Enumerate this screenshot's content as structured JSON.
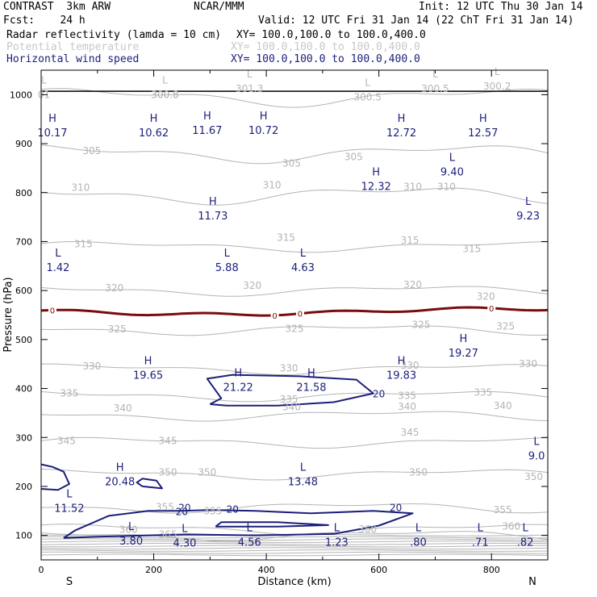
{
  "header": {
    "left1": "CONTRAST  3km ARW",
    "center1": "NCAR/MMM",
    "right1": "Init: 12 UTC Thu 30 Jan 14",
    "left2": "Fcst:    24 h",
    "right2": "Valid: 12 UTC Fri 31 Jan 14 (22 ChT Fri 31 Jan 14)",
    "field1_name": "Radar reflectivity (lamda = 10 cm)",
    "field1_xy": "XY= 100.0,100.0 to 100.0,400.0",
    "field2_name": "Potential temperature",
    "field2_xy": "XY= 100.0,100.0 to 100.0,400.0",
    "field3_name": "Horizontal wind speed",
    "field3_xy": "XY= 100.0,100.0 to 100.0,400.0"
  },
  "colors": {
    "theta": "#b4b4b4",
    "wind": "#1b1f7a",
    "zero": "#7a0c0c",
    "axis": "#000000"
  },
  "chart_data": {
    "type": "cross-section contour",
    "xlabel": "Distance (km)",
    "ylabel": "Pressure (hPa)",
    "xlim": [
      0,
      900
    ],
    "ylim": [
      1050,
      50
    ],
    "x_ticks": [
      "0",
      "200",
      "400",
      "600",
      "800"
    ],
    "y_ticks": [
      "100",
      "200",
      "300",
      "400",
      "500",
      "600",
      "700",
      "800",
      "900",
      "1000"
    ],
    "x_end_labels": {
      "left": "S",
      "right": "N"
    },
    "theta_contours": [
      {
        "level": 300,
        "labels": [
          {
            "x": 220,
            "p": 1000,
            "t": "300.8"
          }
        ]
      },
      {
        "level": 305,
        "labels": [
          {
            "x": 90,
            "p": 885,
            "t": "305"
          },
          {
            "x": 445,
            "p": 860,
            "t": "305"
          },
          {
            "x": 555,
            "p": 873,
            "t": "305"
          }
        ]
      },
      {
        "level": 310,
        "labels": [
          {
            "x": 70,
            "p": 810,
            "t": "310"
          },
          {
            "x": 410,
            "p": 815,
            "t": "310"
          },
          {
            "x": 660,
            "p": 812,
            "t": "310"
          },
          {
            "x": 720,
            "p": 812,
            "t": "310"
          }
        ]
      },
      {
        "level": 315,
        "labels": [
          {
            "x": 75,
            "p": 695,
            "t": "315"
          },
          {
            "x": 435,
            "p": 708,
            "t": "315"
          },
          {
            "x": 655,
            "p": 702,
            "t": "315"
          },
          {
            "x": 765,
            "p": 685,
            "t": "315"
          }
        ]
      },
      {
        "level": 320,
        "labels": [
          {
            "x": 130,
            "p": 605,
            "t": "320"
          },
          {
            "x": 375,
            "p": 610,
            "t": "320"
          },
          {
            "x": 660,
            "p": 612,
            "t": "320"
          },
          {
            "x": 790,
            "p": 588,
            "t": "320"
          }
        ]
      },
      {
        "level": 325,
        "labels": [
          {
            "x": 135,
            "p": 521,
            "t": "325"
          },
          {
            "x": 450,
            "p": 522,
            "t": "325"
          },
          {
            "x": 675,
            "p": 530,
            "t": "325"
          },
          {
            "x": 825,
            "p": 527,
            "t": "325"
          }
        ]
      },
      {
        "level": 330,
        "labels": [
          {
            "x": 90,
            "p": 445,
            "t": "330"
          },
          {
            "x": 440,
            "p": 441,
            "t": "330"
          },
          {
            "x": 655,
            "p": 447,
            "t": "330"
          },
          {
            "x": 865,
            "p": 450,
            "t": "330"
          }
        ]
      },
      {
        "level": 335,
        "labels": [
          {
            "x": 50,
            "p": 390,
            "t": "335"
          },
          {
            "x": 440,
            "p": 378,
            "t": "335"
          },
          {
            "x": 650,
            "p": 385,
            "t": "335"
          },
          {
            "x": 785,
            "p": 392,
            "t": "335"
          }
        ]
      },
      {
        "level": 340,
        "labels": [
          {
            "x": 145,
            "p": 360,
            "t": "340"
          },
          {
            "x": 445,
            "p": 362,
            "t": "340"
          },
          {
            "x": 650,
            "p": 363,
            "t": "340"
          },
          {
            "x": 820,
            "p": 365,
            "t": "340"
          }
        ]
      },
      {
        "level": 345,
        "labels": [
          {
            "x": 45,
            "p": 293,
            "t": "345"
          },
          {
            "x": 225,
            "p": 293,
            "t": "345"
          },
          {
            "x": 655,
            "p": 310,
            "t": "345"
          }
        ]
      },
      {
        "level": 350,
        "labels": [
          {
            "x": 225,
            "p": 229,
            "t": "350"
          },
          {
            "x": 295,
            "p": 229,
            "t": "350"
          },
          {
            "x": 670,
            "p": 229,
            "t": "350"
          },
          {
            "x": 875,
            "p": 220,
            "t": "350"
          }
        ]
      },
      {
        "level": 355,
        "labels": [
          {
            "x": 220,
            "p": 158,
            "t": "355"
          },
          {
            "x": 305,
            "p": 150,
            "t": "355"
          },
          {
            "x": 820,
            "p": 152,
            "t": "355"
          }
        ]
      },
      {
        "level": 360,
        "labels": [
          {
            "x": 155,
            "p": 112,
            "t": "360"
          },
          {
            "x": 580,
            "p": 113,
            "t": "360"
          },
          {
            "x": 835,
            "p": 118,
            "t": "360"
          }
        ]
      },
      {
        "level": 365,
        "labels": [
          {
            "x": 225,
            "p": 102,
            "t": "365"
          }
        ]
      }
    ],
    "wind_speed_contours": [
      {
        "level": 20,
        "labels": [
          "20",
          "20",
          "20",
          "20",
          "20"
        ]
      }
    ],
    "zero_contour": {
      "level": 0,
      "labels": [
        "0",
        "0",
        "0",
        "0"
      ]
    },
    "surface_L_labels": [
      {
        "x": 220,
        "p": 1000,
        "t": "300.8"
      },
      {
        "x": 370,
        "p": 1012,
        "t": "301.3"
      },
      {
        "x": 580,
        "p": 995,
        "t": "300.5"
      },
      {
        "x": 700,
        "p": 1012,
        "t": "300.5"
      },
      {
        "x": 810,
        "p": 1017,
        "t": "300.2"
      },
      {
        "x": 5,
        "p": 1000,
        "t": "01"
      }
    ],
    "extrema": [
      {
        "kind": "L",
        "x": 160,
        "p": 91,
        "value": "3.80"
      },
      {
        "kind": "L",
        "x": 255,
        "p": 87,
        "value": "4.30"
      },
      {
        "kind": "L",
        "x": 370,
        "p": 89,
        "value": "4.56"
      },
      {
        "kind": "L",
        "x": 525,
        "p": 89,
        "value": "1.23"
      },
      {
        "kind": "L",
        "x": 670,
        "p": 89,
        "value": ".80"
      },
      {
        "kind": "L",
        "x": 780,
        "p": 89,
        "value": ".71"
      },
      {
        "kind": "L",
        "x": 860,
        "p": 89,
        "value": ".82"
      },
      {
        "kind": "L",
        "x": 50,
        "p": 158,
        "value": "11.52"
      },
      {
        "kind": "H",
        "x": 140,
        "p": 212,
        "value": "20.48"
      },
      {
        "kind": "L",
        "x": 465,
        "p": 212,
        "value": "13.48"
      },
      {
        "kind": "L",
        "x": 880,
        "p": 265,
        "value": "9.0"
      },
      {
        "kind": "H",
        "x": 350,
        "p": 405,
        "value": "21.22"
      },
      {
        "kind": "H",
        "x": 480,
        "p": 405,
        "value": "21.58"
      },
      {
        "kind": "H",
        "x": 190,
        "p": 430,
        "value": "19.65"
      },
      {
        "kind": "H",
        "x": 640,
        "p": 430,
        "value": "19.83"
      },
      {
        "kind": "H",
        "x": 750,
        "p": 475,
        "value": "19.27"
      },
      {
        "kind": "L",
        "x": 30,
        "p": 650,
        "value": "1.42"
      },
      {
        "kind": "L",
        "x": 330,
        "p": 650,
        "value": "5.88"
      },
      {
        "kind": "L",
        "x": 465,
        "p": 650,
        "value": "4.63"
      },
      {
        "kind": "H",
        "x": 305,
        "p": 755,
        "value": "11.73"
      },
      {
        "kind": "L",
        "x": 865,
        "p": 755,
        "value": "9.23"
      },
      {
        "kind": "H",
        "x": 595,
        "p": 815,
        "value": "12.32"
      },
      {
        "kind": "L",
        "x": 730,
        "p": 845,
        "value": "9.40"
      },
      {
        "kind": "H",
        "x": 20,
        "p": 925,
        "value": "10.17"
      },
      {
        "kind": "H",
        "x": 200,
        "p": 925,
        "value": "10.62"
      },
      {
        "kind": "H",
        "x": 295,
        "p": 930,
        "value": "11.67"
      },
      {
        "kind": "H",
        "x": 395,
        "p": 930,
        "value": "10.72"
      },
      {
        "kind": "H",
        "x": 640,
        "p": 925,
        "value": "12.72"
      },
      {
        "kind": "H",
        "x": 785,
        "p": 925,
        "value": "12.57"
      }
    ]
  }
}
